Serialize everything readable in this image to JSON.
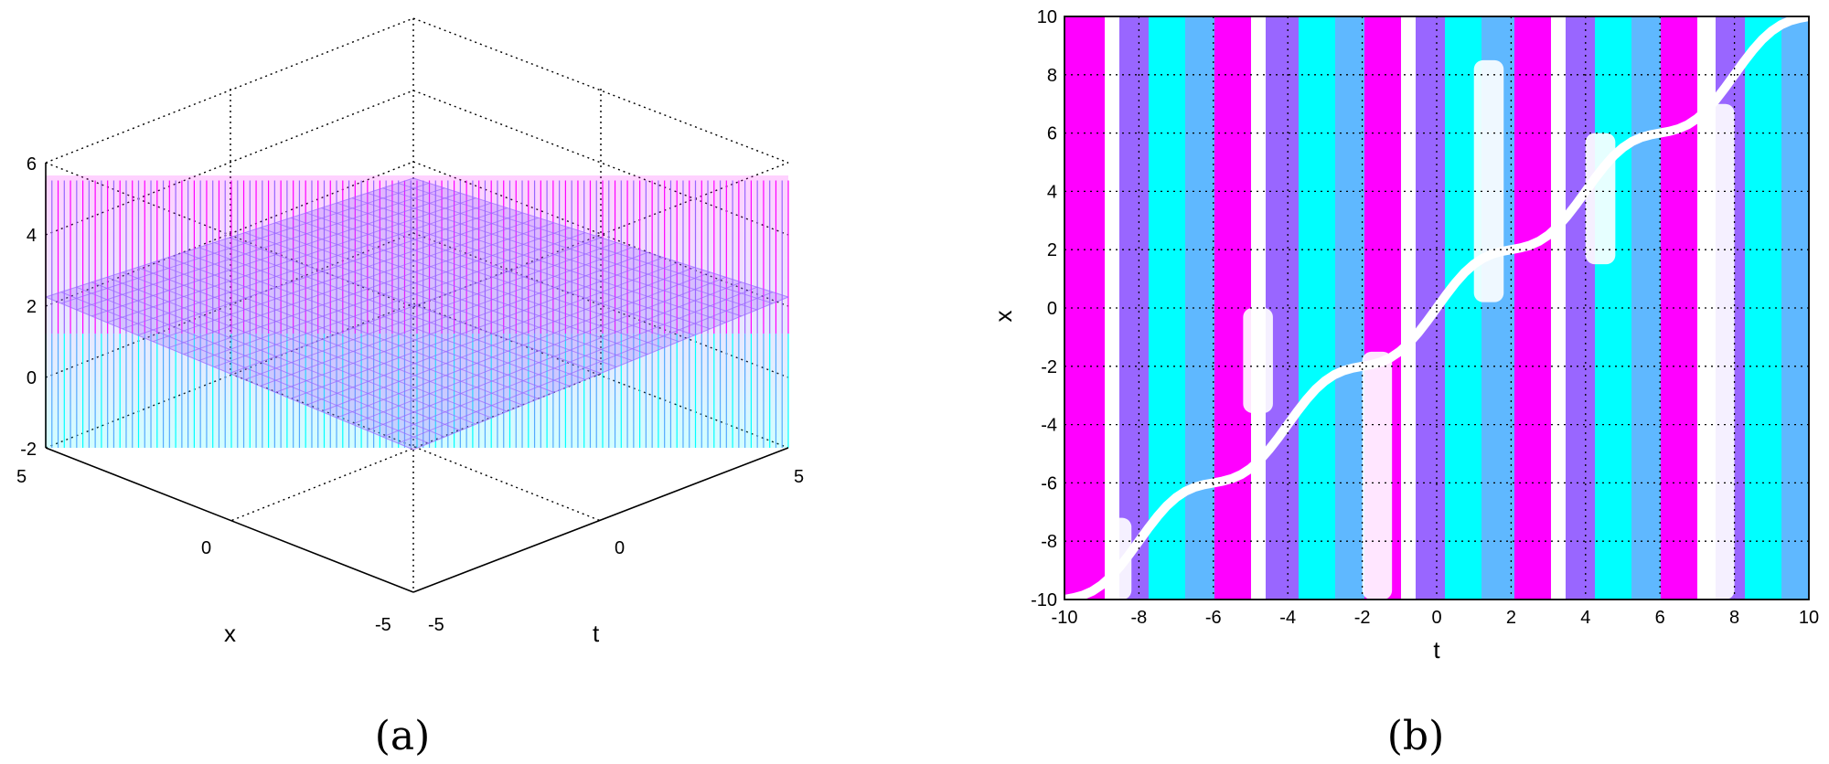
{
  "figure": {
    "panel_a": {
      "caption": "(a)",
      "chart_data": {
        "type": "surface3d",
        "z_ticks": [
          "6",
          "4",
          "2",
          "0",
          "-2"
        ],
        "zlim": [
          -2,
          6
        ],
        "x_label": "x",
        "x_ticks": [
          "5",
          "0",
          "-5"
        ],
        "xlim": [
          -5,
          5
        ],
        "t_label": "t",
        "t_ticks": [
          "-5",
          "0",
          "5"
        ],
        "tlim": [
          -5,
          5
        ],
        "colors": {
          "high": "#ff00ff",
          "mid": "#9966ff",
          "low": "#00ffff"
        },
        "grid": true
      }
    },
    "panel_b": {
      "caption": "(b)",
      "chart_data": {
        "type": "heatmap",
        "xlabel": "t",
        "ylabel": "x",
        "xlim": [
          -10,
          10
        ],
        "ylim": [
          -10,
          10
        ],
        "x_ticks": [
          "-10",
          "-8",
          "-6",
          "-4",
          "-2",
          "0",
          "2",
          "4",
          "6",
          "8",
          "10"
        ],
        "y_ticks": [
          "10",
          "8",
          "6",
          "4",
          "2",
          "0",
          "-2",
          "-4",
          "-6",
          "-8",
          "-10"
        ],
        "grid": true,
        "colors": {
          "magenta": "#ff00ff",
          "cyan": "#00ffff",
          "violet": "#9966ff"
        }
      }
    }
  }
}
